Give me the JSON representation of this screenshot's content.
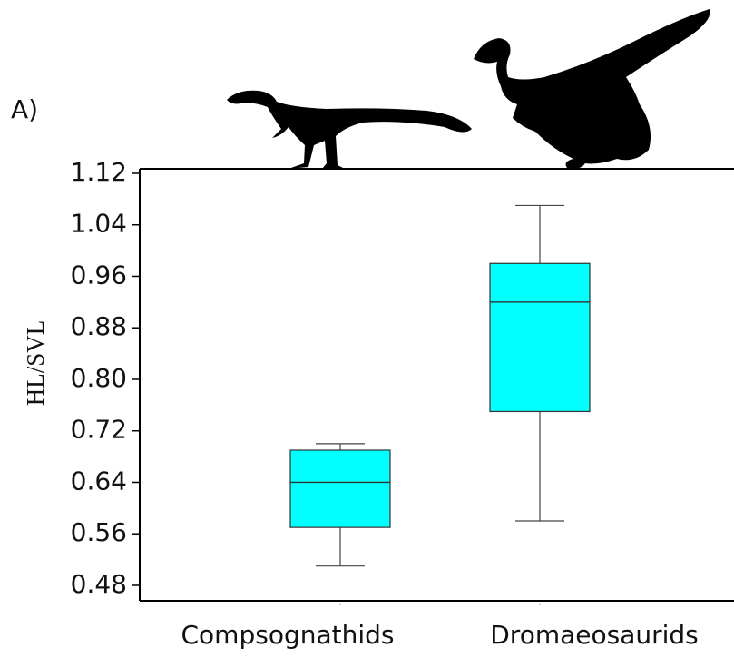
{
  "panel_label": "A)",
  "chart_data": {
    "type": "box",
    "y_label": "HL/SVL",
    "categories": [
      "Compsognathids",
      "Dromaeosaurids"
    ],
    "boxes": [
      {
        "min": 0.51,
        "q1": 0.57,
        "median": 0.64,
        "q3": 0.69,
        "max": 0.7
      },
      {
        "min": 0.58,
        "q1": 0.75,
        "median": 0.92,
        "q3": 0.98,
        "max": 1.07
      }
    ],
    "color": "#00ffff",
    "ylim": [
      0.456,
      1.127
    ],
    "yticks": [
      1.12,
      1.04,
      0.96,
      0.88,
      {
        "value": 0.8,
        "label": "0.80"
      },
      0.72,
      0.64,
      0.56,
      0.48
    ]
  }
}
